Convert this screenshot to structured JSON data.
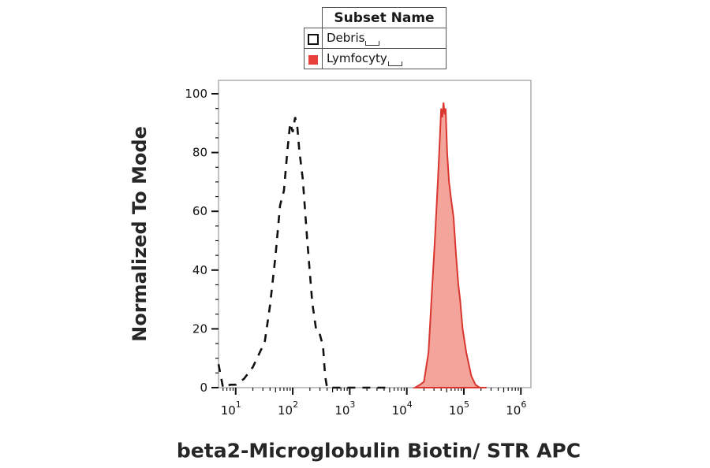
{
  "legend": {
    "header": "Subset Name",
    "items": [
      {
        "label": "Debris",
        "style": "dashed-outline",
        "color": "#111111"
      },
      {
        "label": "Lymfocyty",
        "style": "filled",
        "color": "#e8403a"
      }
    ]
  },
  "colors": {
    "fill": "#f4a59b",
    "stroke": "#d9362f",
    "dashed": "#111111"
  },
  "chart_data": {
    "type": "area",
    "xlabel": "beta2-Microglobulin Biotin/ STR APC",
    "ylabel": "Normalized To Mode",
    "xscale": "log",
    "xlim": [
      5,
      1500000
    ],
    "ylim": [
      0,
      100
    ],
    "yticks": [
      0,
      20,
      40,
      60,
      80,
      100
    ],
    "xticks": [
      {
        "base": "10",
        "exp": "1",
        "value": 10
      },
      {
        "base": "10",
        "exp": "2",
        "value": 100
      },
      {
        "base": "10",
        "exp": "3",
        "value": 1000
      },
      {
        "base": "10",
        "exp": "4",
        "value": 10000
      },
      {
        "base": "10",
        "exp": "5",
        "value": 100000
      },
      {
        "base": "10",
        "exp": "6",
        "value": 1000000
      }
    ],
    "series": [
      {
        "name": "Debris",
        "style": "dashed",
        "points": [
          [
            5,
            8
          ],
          [
            6,
            0
          ],
          [
            8,
            1
          ],
          [
            10,
            1
          ],
          [
            14,
            3
          ],
          [
            20,
            7
          ],
          [
            28,
            13
          ],
          [
            32,
            15
          ],
          [
            40,
            28
          ],
          [
            50,
            45
          ],
          [
            60,
            62
          ],
          [
            70,
            67
          ],
          [
            80,
            80
          ],
          [
            90,
            90
          ],
          [
            100,
            87
          ],
          [
            110,
            92
          ],
          [
            120,
            89
          ],
          [
            130,
            81
          ],
          [
            150,
            71
          ],
          [
            180,
            50
          ],
          [
            220,
            29
          ],
          [
            260,
            19
          ],
          [
            300,
            18
          ],
          [
            340,
            14
          ],
          [
            370,
            4
          ],
          [
            400,
            0
          ],
          [
            800,
            0
          ],
          [
            1500,
            0
          ],
          [
            5000,
            0
          ]
        ]
      },
      {
        "name": "Lymfocyty",
        "style": "filled",
        "points": [
          [
            14000,
            0
          ],
          [
            17000,
            1
          ],
          [
            20000,
            2
          ],
          [
            24000,
            12
          ],
          [
            28000,
            35
          ],
          [
            31000,
            50
          ],
          [
            35000,
            70
          ],
          [
            38000,
            85
          ],
          [
            40000,
            95
          ],
          [
            42000,
            92
          ],
          [
            44000,
            97
          ],
          [
            46000,
            93
          ],
          [
            48000,
            95
          ],
          [
            51000,
            80
          ],
          [
            55000,
            70
          ],
          [
            60000,
            64
          ],
          [
            66000,
            58
          ],
          [
            73000,
            45
          ],
          [
            80000,
            35
          ],
          [
            86000,
            30
          ],
          [
            95000,
            20
          ],
          [
            110000,
            12
          ],
          [
            135000,
            4
          ],
          [
            160000,
            1
          ],
          [
            190000,
            0
          ],
          [
            250000,
            0
          ]
        ]
      }
    ]
  }
}
